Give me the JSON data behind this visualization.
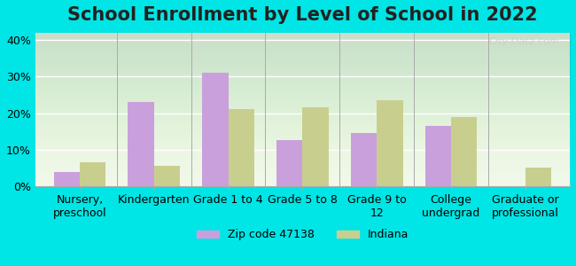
{
  "title": "School Enrollment by Level of School in 2022",
  "categories": [
    "Nursery,\npreschool",
    "Kindergarten",
    "Grade 1 to 4",
    "Grade 5 to 8",
    "Grade 9 to\n12",
    "College\nundergrad",
    "Graduate or\nprofessional"
  ],
  "zip_values": [
    4.0,
    23.0,
    31.0,
    12.5,
    14.5,
    16.5,
    0.0
  ],
  "indiana_values": [
    6.5,
    5.5,
    21.0,
    21.5,
    23.5,
    19.0,
    5.0
  ],
  "zip_color": "#c9a0dc",
  "indiana_color": "#c8cf8e",
  "background_outer": "#00e5e5",
  "background_plot": "#e8f5e0",
  "background_plot_top": "#ffffff",
  "ylim": [
    0,
    42
  ],
  "yticks": [
    0,
    10,
    20,
    30,
    40
  ],
  "ytick_labels": [
    "0%",
    "10%",
    "20%",
    "30%",
    "40%"
  ],
  "legend_zip_label": "Zip code 47138",
  "legend_indiana_label": "Indiana",
  "title_fontsize": 15,
  "tick_fontsize": 9,
  "legend_fontsize": 9,
  "watermark_text": "City-Data.com",
  "bar_width": 0.35
}
